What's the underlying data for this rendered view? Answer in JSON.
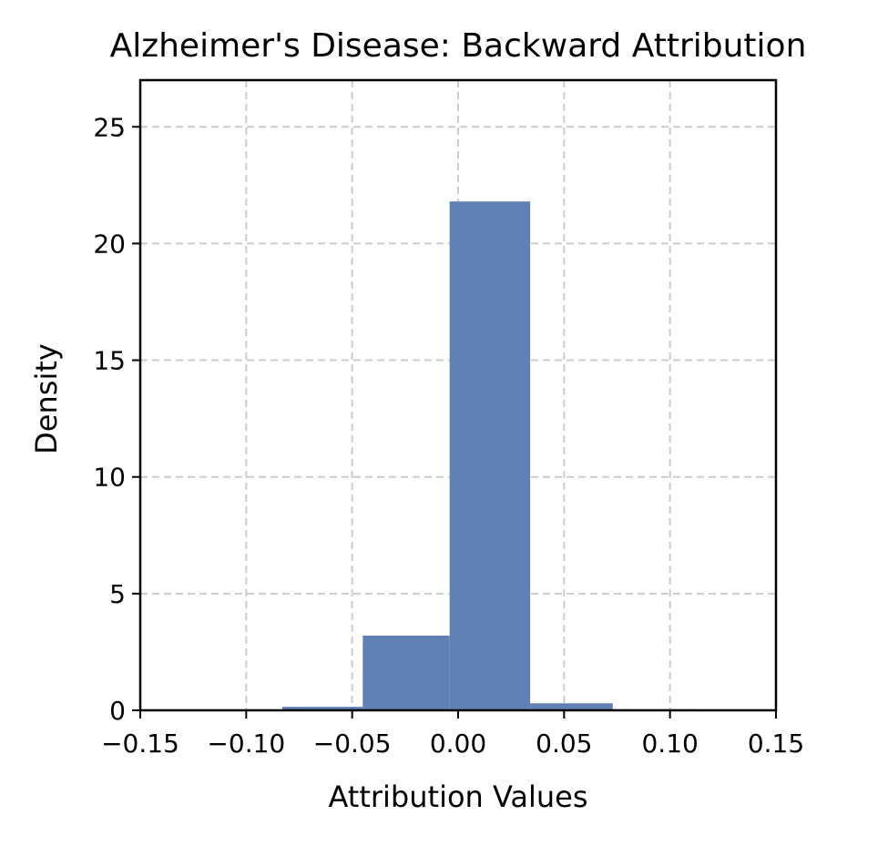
{
  "chart_data": {
    "type": "bar",
    "title": "Alzheimer's Disease: Backward Attribution",
    "xlabel": "Attribution Values",
    "ylabel": "Density",
    "xlim": [
      -0.15,
      0.15
    ],
    "ylim": [
      0,
      27
    ],
    "x_ticks": [
      -0.15,
      -0.1,
      -0.05,
      0.0,
      0.05,
      0.1,
      0.15
    ],
    "x_tick_labels": [
      "−0.15",
      "−0.10",
      "−0.05",
      "0.00",
      "0.05",
      "0.10",
      "0.15"
    ],
    "y_ticks": [
      0,
      5,
      10,
      15,
      20,
      25
    ],
    "y_tick_labels": [
      "0",
      "5",
      "10",
      "15",
      "20",
      "25"
    ],
    "grid": true,
    "bar_color": "#6080b5",
    "bins": [
      {
        "x0": -0.083,
        "x1": -0.045,
        "value": 0.15
      },
      {
        "x0": -0.045,
        "x1": -0.004,
        "value": 3.2
      },
      {
        "x0": -0.004,
        "x1": 0.034,
        "value": 21.8
      },
      {
        "x0": 0.034,
        "x1": 0.073,
        "value": 0.3
      },
      {
        "x0": 0.073,
        "x1": 0.112,
        "value": 0.05
      }
    ]
  }
}
